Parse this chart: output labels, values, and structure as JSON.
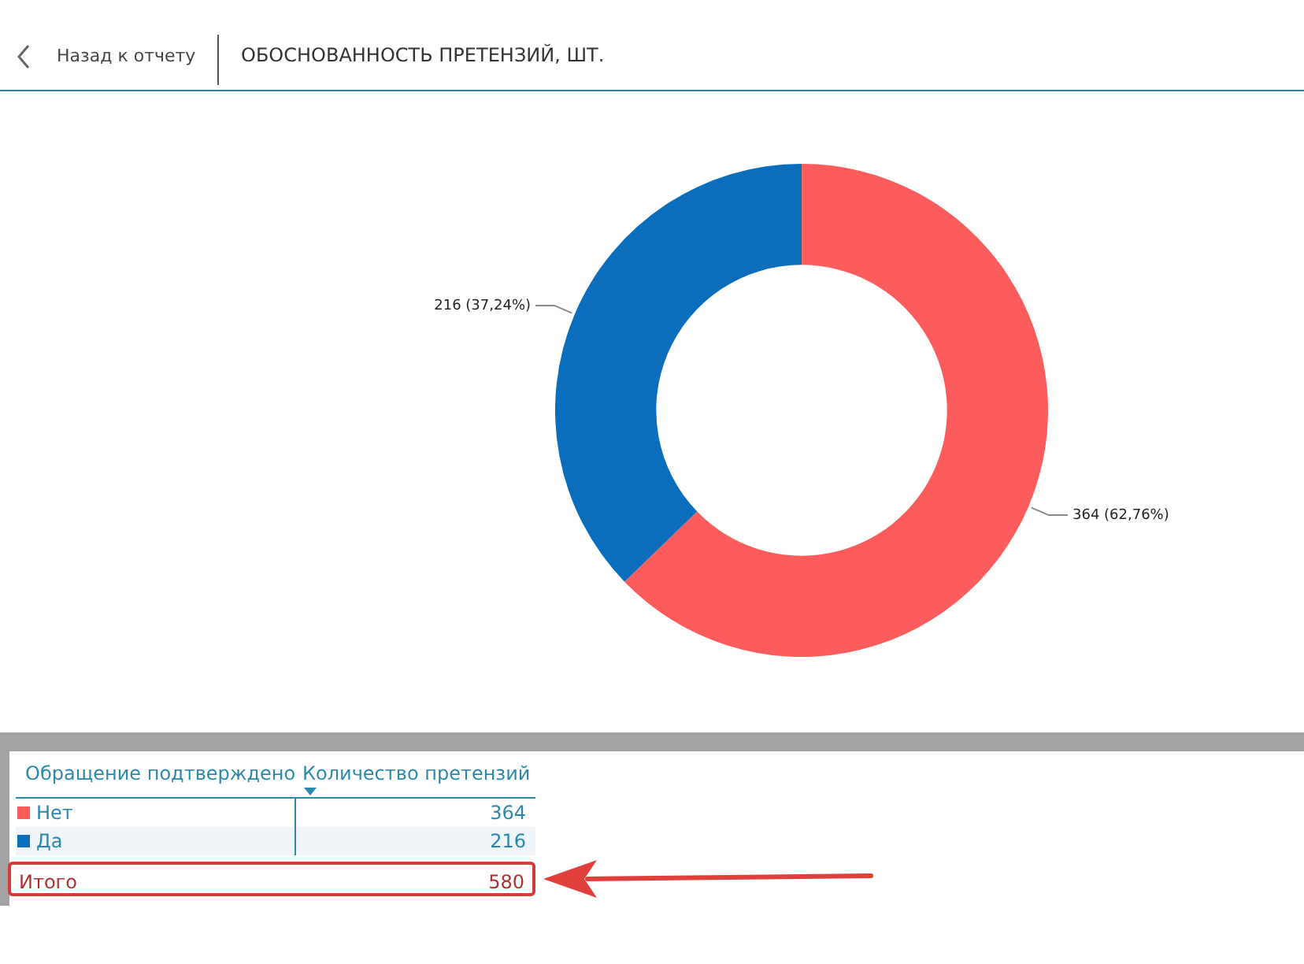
{
  "chart_data": {
    "type": "donut",
    "title": "ОБОСНОВАННОСТЬ ПРЕТЕНЗИЙ, ШТ.",
    "categories": [
      "Нет",
      "Да"
    ],
    "values": [
      364,
      216
    ],
    "colors": [
      "#fd5c5c",
      "#0a6ebd"
    ],
    "value_labels": [
      "364 (62,76%)",
      "216 (37,24%)"
    ],
    "totals": [
      "580"
    ],
    "annotations": [
      "Назад к отчету",
      "Обращение подтверждено",
      "Количество претензий",
      "Итого",
      "364",
      "216"
    ],
    "legend": "bottom left"
  }
}
